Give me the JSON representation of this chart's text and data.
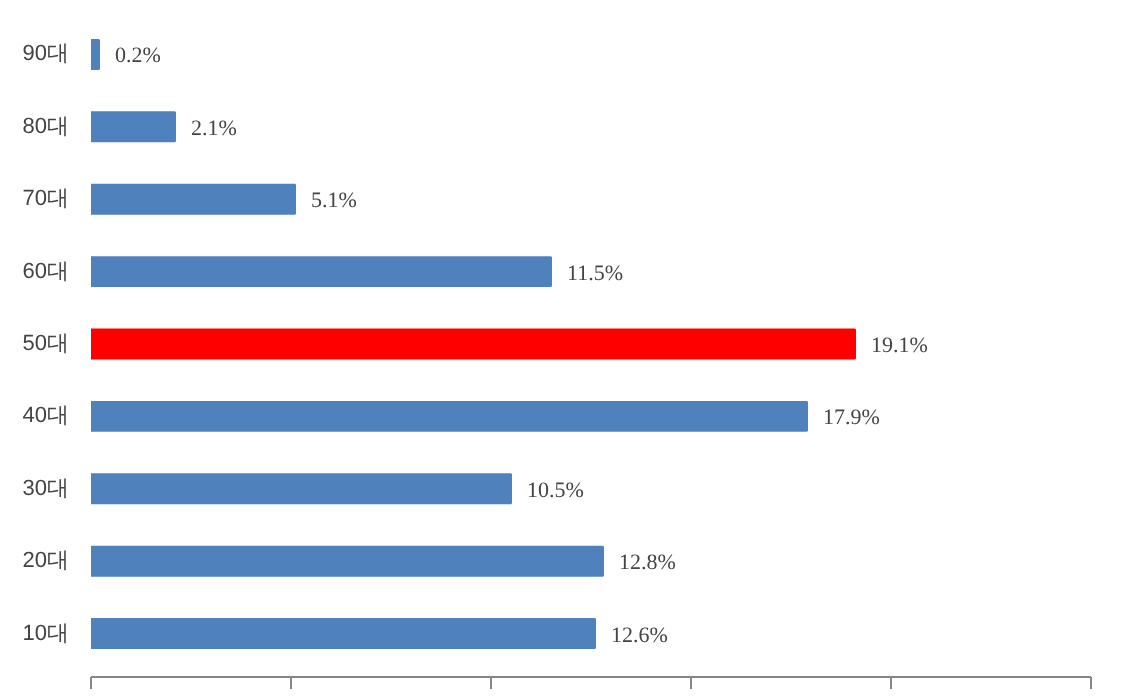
{
  "chart_data": {
    "type": "bar",
    "orientation": "horizontal",
    "categories": [
      "90대",
      "80대",
      "70대",
      "60대",
      "50대",
      "40대",
      "30대",
      "20대",
      "10대"
    ],
    "values": [
      0.2,
      2.1,
      5.1,
      11.5,
      19.1,
      17.9,
      10.5,
      12.8,
      12.6
    ],
    "colors": [
      "#4f81bd",
      "#4f81bd",
      "#4f81bd",
      "#4f81bd",
      "#ff0000",
      "#4f81bd",
      "#4f81bd",
      "#4f81bd",
      "#4f81bd"
    ],
    "value_labels": [
      "0.2%",
      "2.1%",
      "5.1%",
      "11.5%",
      "19.1%",
      "17.9%",
      "10.5%",
      "12.8%",
      "12.6%"
    ],
    "xlim": [
      0,
      25
    ],
    "xticks": [
      {
        "value": 0,
        "label": null
      },
      {
        "value": 5,
        "label": null
      },
      {
        "value": 10,
        "label": null
      },
      {
        "value": 15,
        "label": null
      },
      {
        "value": 20,
        "label": null
      },
      {
        "value": 25,
        "label": null
      }
    ],
    "tick_labels": "y",
    "grid": false
  }
}
